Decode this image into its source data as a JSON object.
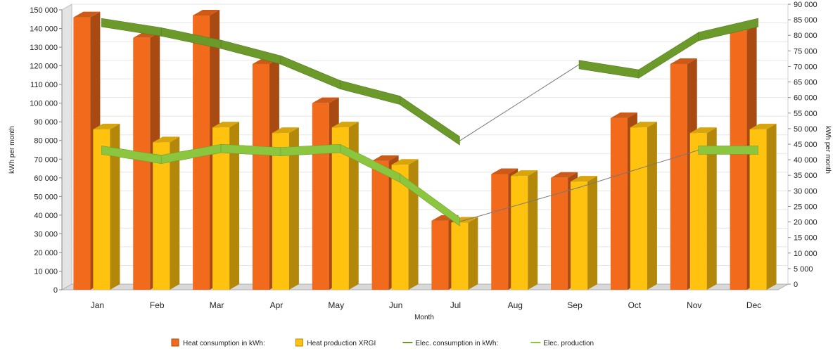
{
  "chart_data": {
    "type": "bar",
    "categories": [
      "Jan",
      "Feb",
      "Mar",
      "Apr",
      "May",
      "Jun",
      "Jul",
      "Aug",
      "Sep",
      "Oct",
      "Nov",
      "Dec"
    ],
    "xlabel": "Month",
    "ylabel_left": "kWh per month",
    "ylabel_right": "kWh per month",
    "ylim_left": [
      0,
      150000
    ],
    "ylim_right": [
      0,
      90000
    ],
    "yticks_left": [
      "0",
      "10 000",
      "20 000",
      "30 000",
      "40 000",
      "50 000",
      "60 000",
      "70 000",
      "80 000",
      "90 000",
      "100 000",
      "110 000",
      "120 000",
      "130 000",
      "140 000",
      "150 000"
    ],
    "yticks_right": [
      "0",
      "5 000",
      "10 000",
      "15 000",
      "20 000",
      "25 000",
      "30 000",
      "35 000",
      "40 000",
      "45 000",
      "50 000",
      "55 000",
      "60 000",
      "65 000",
      "70 000",
      "75 000",
      "80 000",
      "85 000",
      "90 000"
    ],
    "grid": true,
    "legend_position": "bottom",
    "series": [
      {
        "name": "Heat consumption in kWh",
        "axis": "left",
        "kind": "bar",
        "color": "#f26a1b",
        "values": [
          146000,
          135000,
          147000,
          121000,
          100000,
          69000,
          37000,
          62000,
          60000,
          92000,
          121000,
          139000
        ]
      },
      {
        "name": "Heat production XRGI",
        "axis": "left",
        "kind": "bar",
        "color": "#ffc20e",
        "values": [
          86000,
          79000,
          87000,
          84000,
          87000,
          67000,
          36000,
          61000,
          58000,
          87000,
          84000,
          86000
        ]
      },
      {
        "name": "Elec. consumption in kWh",
        "axis": "right",
        "kind": "line",
        "color": "#6b9a2a",
        "values": [
          85000,
          82000,
          78000,
          73000,
          65000,
          60000,
          47000,
          null,
          71500,
          68500,
          80500,
          85000
        ]
      },
      {
        "name": "Elec. production",
        "axis": "right",
        "kind": "line",
        "color": "#8cc63f",
        "values": [
          44000,
          41000,
          44500,
          43500,
          44500,
          35000,
          21000,
          null,
          32000,
          null,
          44000,
          44000
        ]
      }
    ],
    "legend": {
      "items": [
        {
          "label": "Heat consumption in kWh:",
          "color": "#f26a1b",
          "type": "box"
        },
        {
          "label": "Heat production XRGI",
          "color": "#ffc20e",
          "type": "box"
        },
        {
          "label": "Elec. consumption in kWh:",
          "color": "#6b9a2a",
          "type": "line"
        },
        {
          "label": "Elec. production",
          "color": "#8cc63f",
          "type": "line"
        }
      ]
    }
  }
}
